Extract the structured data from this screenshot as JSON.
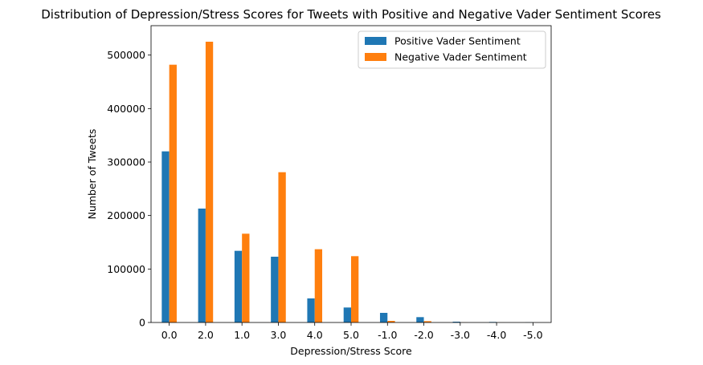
{
  "chart_data": {
    "type": "bar",
    "title": "Distribution of Depression/Stress Scores for Tweets with Positive and Negative Vader Sentiment Scores",
    "xlabel": "Depression/Stress Score",
    "ylabel": "Number of Tweets",
    "categories": [
      "0.0",
      "2.0",
      "1.0",
      "3.0",
      "4.0",
      "5.0",
      "-1.0",
      "-2.0",
      "-3.0",
      "-4.0",
      "-5.0"
    ],
    "ylim": [
      0,
      555000
    ],
    "yticks": [
      0,
      100000,
      200000,
      300000,
      400000,
      500000
    ],
    "ytick_labels": [
      "0",
      "100000",
      "200000",
      "300000",
      "400000",
      "500000"
    ],
    "series": [
      {
        "name": "Positive Vader Sentiment",
        "color": "#1f77b4",
        "values": [
          320000,
          213000,
          134000,
          123000,
          45000,
          28000,
          18000,
          10000,
          1500,
          1000,
          300
        ]
      },
      {
        "name": "Negative Vader Sentiment",
        "color": "#ff7f0e",
        "values": [
          482000,
          525000,
          166000,
          281000,
          137000,
          124000,
          3000,
          2500,
          200,
          100,
          50
        ]
      }
    ],
    "legend_position": "top-right",
    "grid": false
  }
}
